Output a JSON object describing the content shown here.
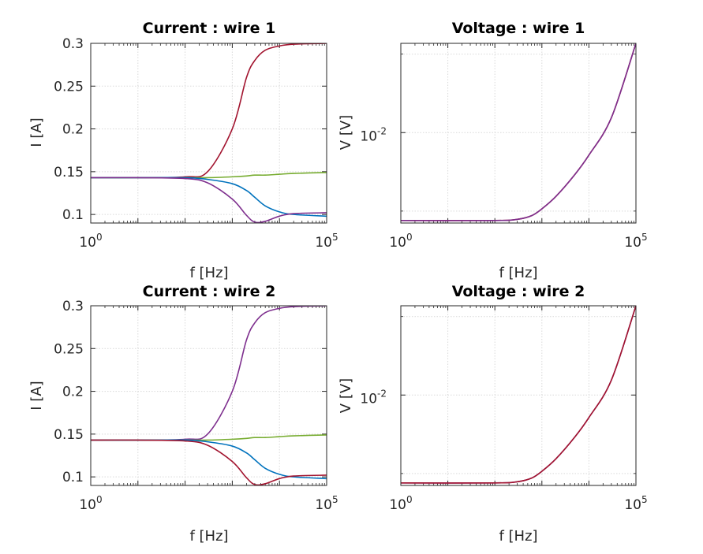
{
  "chart_data": [
    {
      "type": "line",
      "title": "Current : wire 1",
      "xlabel": "f [Hz]",
      "ylabel": "I [A]",
      "xscale": "log",
      "yscale": "linear",
      "xlim": [
        1,
        100000
      ],
      "ylim": [
        0.09,
        0.3
      ],
      "xticks": [
        1,
        100000
      ],
      "xtick_labels": [
        {
          "base": "10",
          "exp": "0"
        },
        {
          "base": "10",
          "exp": "5"
        }
      ],
      "yticks": [
        0.1,
        0.15,
        0.2,
        0.25,
        0.3
      ],
      "ytick_labels": [
        "0.1",
        "0.15",
        "0.2",
        "0.25",
        "0.3"
      ],
      "grid": true,
      "x": [
        1,
        10,
        100,
        300,
        1000,
        2000,
        3000,
        5000,
        10000,
        20000,
        100000
      ],
      "series": [
        {
          "color": "#A2142F",
          "values": [
            0.143,
            0.143,
            0.144,
            0.15,
            0.2,
            0.26,
            0.28,
            0.292,
            0.297,
            0.299,
            0.3
          ]
        },
        {
          "color": "#77AC30",
          "values": [
            0.143,
            0.143,
            0.143,
            0.143,
            0.144,
            0.145,
            0.146,
            0.146,
            0.147,
            0.148,
            0.149
          ]
        },
        {
          "color": "#0072BD",
          "values": [
            0.143,
            0.143,
            0.143,
            0.141,
            0.136,
            0.128,
            0.12,
            0.11,
            0.103,
            0.1,
            0.098
          ]
        },
        {
          "color": "#7E2F8E",
          "values": [
            0.143,
            0.143,
            0.142,
            0.137,
            0.118,
            0.099,
            0.091,
            0.092,
            0.098,
            0.101,
            0.102
          ]
        }
      ]
    },
    {
      "type": "line",
      "title": "Voltage : wire 1",
      "xlabel": "f [Hz]",
      "ylabel": "V [V]",
      "xscale": "log",
      "yscale": "log",
      "xlim": [
        1,
        100000
      ],
      "ylim": [
        0.0045,
        0.022
      ],
      "xticks": [
        1,
        100000
      ],
      "xtick_labels": [
        {
          "base": "10",
          "exp": "0"
        },
        {
          "base": "10",
          "exp": "5"
        }
      ],
      "yticks": [
        0.01
      ],
      "ytick_labels": [
        {
          "base": "10",
          "exp": "-2"
        }
      ],
      "ygrid_extra": [
        0.005,
        0.02
      ],
      "grid": true,
      "x": [
        1,
        100,
        300,
        600,
        1000,
        2000,
        5000,
        10000,
        30000,
        100000
      ],
      "series": [
        {
          "color": "#A2142F",
          "values": [
            0.0046,
            0.0046,
            0.00465,
            0.0048,
            0.0051,
            0.0057,
            0.0069,
            0.0082,
            0.0114,
            0.022
          ]
        },
        {
          "color": "#7E2F8E",
          "values": [
            0.0046,
            0.0046,
            0.00465,
            0.0048,
            0.0051,
            0.0057,
            0.0069,
            0.0082,
            0.0114,
            0.022
          ]
        }
      ]
    },
    {
      "type": "line",
      "title": "Current : wire 2",
      "xlabel": "f [Hz]",
      "ylabel": "I [A]",
      "xscale": "log",
      "yscale": "linear",
      "xlim": [
        1,
        100000
      ],
      "ylim": [
        0.09,
        0.3
      ],
      "xticks": [
        1,
        100000
      ],
      "xtick_labels": [
        {
          "base": "10",
          "exp": "0"
        },
        {
          "base": "10",
          "exp": "5"
        }
      ],
      "yticks": [
        0.1,
        0.15,
        0.2,
        0.25,
        0.3
      ],
      "ytick_labels": [
        "0.1",
        "0.15",
        "0.2",
        "0.25",
        "0.3"
      ],
      "grid": true,
      "x": [
        1,
        10,
        100,
        300,
        1000,
        2000,
        3000,
        5000,
        10000,
        20000,
        100000
      ],
      "series": [
        {
          "color": "#7E2F8E",
          "values": [
            0.143,
            0.143,
            0.144,
            0.15,
            0.2,
            0.26,
            0.28,
            0.292,
            0.297,
            0.299,
            0.3
          ]
        },
        {
          "color": "#77AC30",
          "values": [
            0.143,
            0.143,
            0.143,
            0.143,
            0.144,
            0.145,
            0.146,
            0.146,
            0.147,
            0.148,
            0.149
          ]
        },
        {
          "color": "#0072BD",
          "values": [
            0.143,
            0.143,
            0.143,
            0.141,
            0.136,
            0.128,
            0.12,
            0.11,
            0.103,
            0.1,
            0.098
          ]
        },
        {
          "color": "#A2142F",
          "values": [
            0.143,
            0.143,
            0.142,
            0.137,
            0.118,
            0.099,
            0.091,
            0.092,
            0.098,
            0.101,
            0.102
          ]
        }
      ]
    },
    {
      "type": "line",
      "title": "Voltage : wire 2",
      "xlabel": "f [Hz]",
      "ylabel": "V [V]",
      "xscale": "log",
      "yscale": "log",
      "xlim": [
        1,
        100000
      ],
      "ylim": [
        0.0045,
        0.022
      ],
      "xticks": [
        1,
        100000
      ],
      "xtick_labels": [
        {
          "base": "10",
          "exp": "0"
        },
        {
          "base": "10",
          "exp": "5"
        }
      ],
      "yticks": [
        0.01
      ],
      "ytick_labels": [
        {
          "base": "10",
          "exp": "-2"
        }
      ],
      "ygrid_extra": [
        0.005,
        0.02
      ],
      "grid": true,
      "x": [
        1,
        100,
        300,
        600,
        1000,
        2000,
        5000,
        10000,
        30000,
        100000
      ],
      "series": [
        {
          "color": "#7E2F8E",
          "values": [
            0.0046,
            0.0046,
            0.00465,
            0.0048,
            0.0051,
            0.0057,
            0.0069,
            0.0082,
            0.0114,
            0.022
          ]
        },
        {
          "color": "#A2142F",
          "values": [
            0.0046,
            0.0046,
            0.00465,
            0.0048,
            0.0051,
            0.0057,
            0.0069,
            0.0082,
            0.0114,
            0.022
          ]
        }
      ]
    }
  ]
}
